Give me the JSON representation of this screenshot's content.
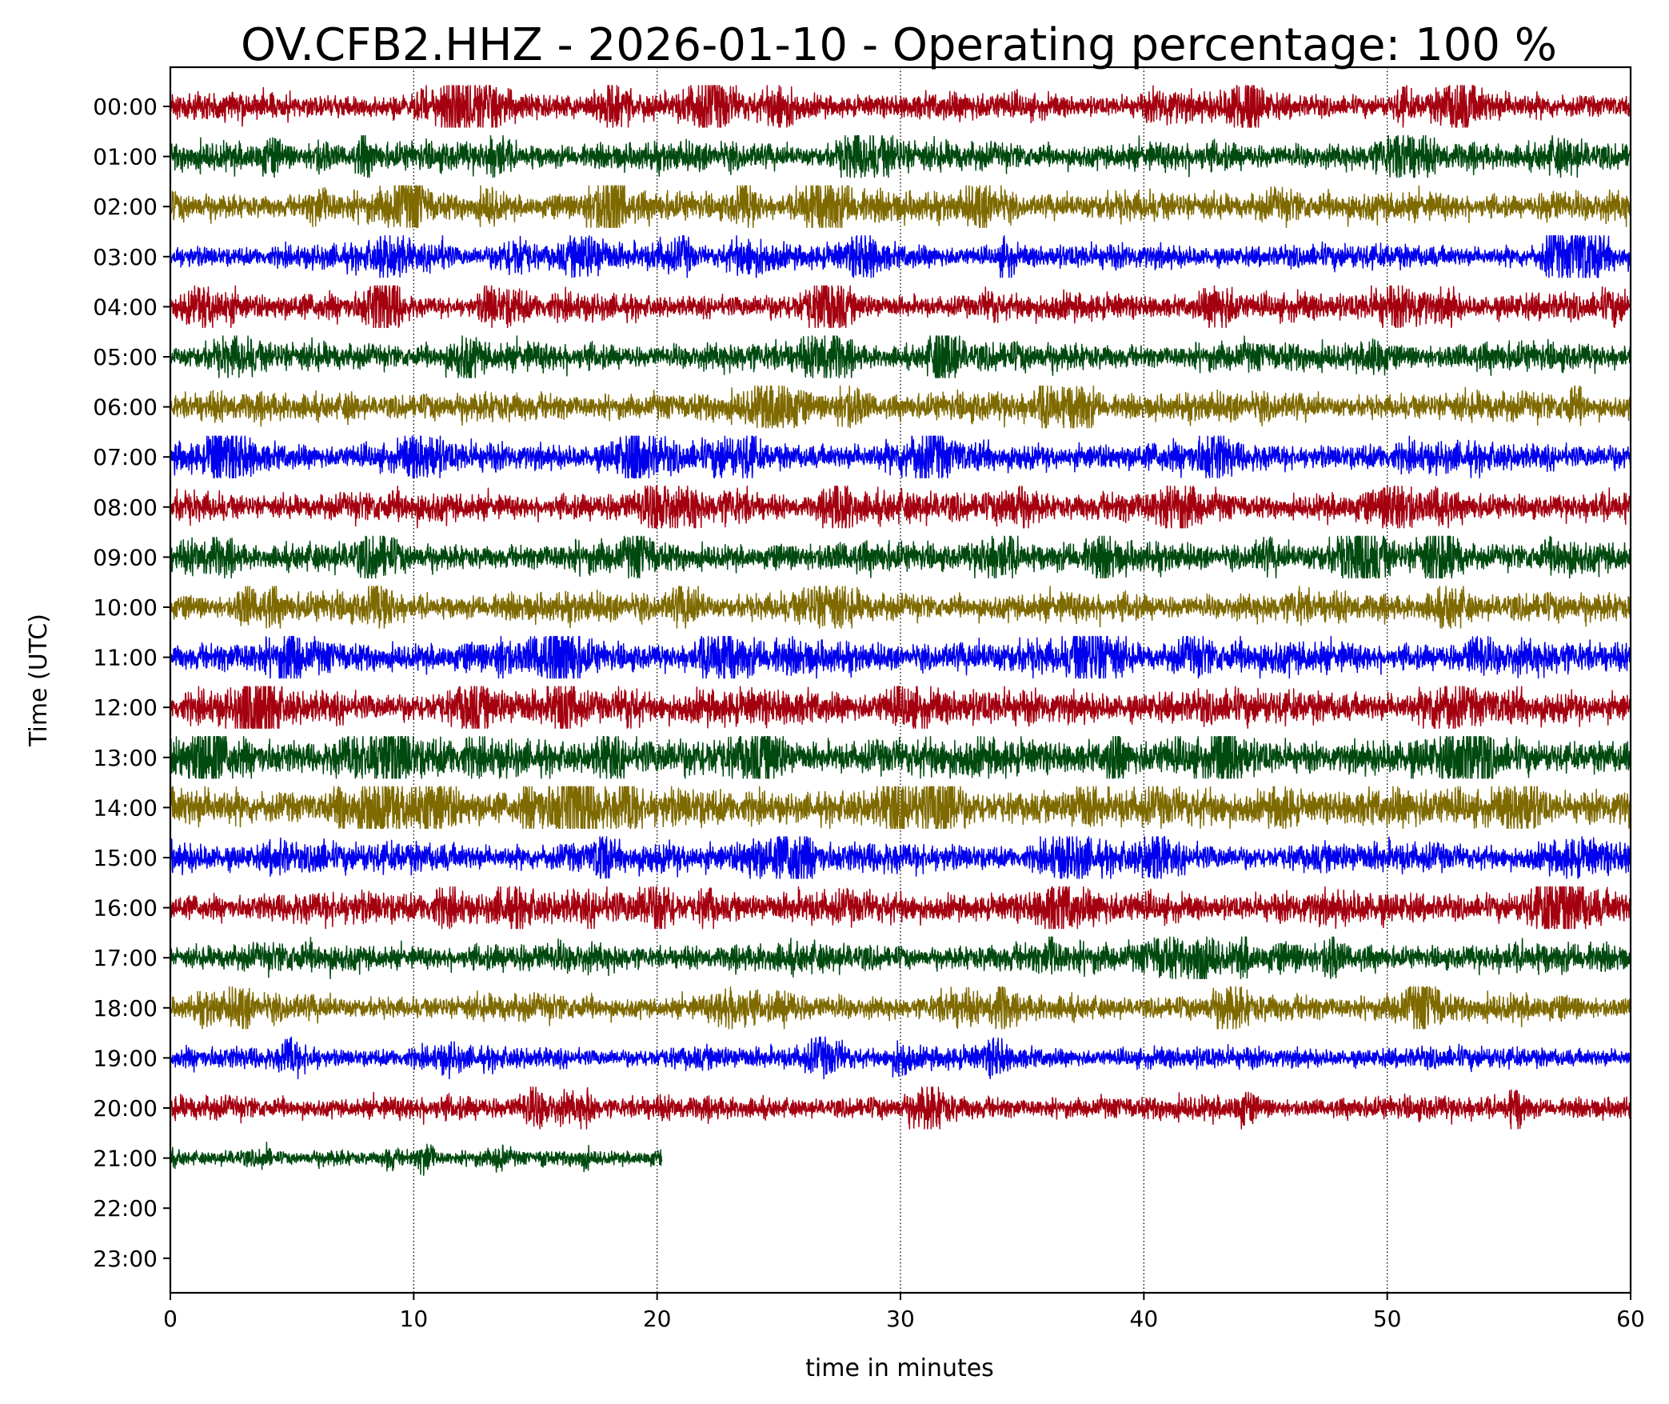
{
  "chart_data": {
    "type": "line",
    "title": "OV.CFB2.HHZ - 2026-01-10 - Operating percentage: 100 %",
    "xlabel": "time in minutes",
    "ylabel": "Time (UTC)",
    "xlim": [
      0,
      60
    ],
    "x_ticks": [
      "0",
      "10",
      "20",
      "30",
      "40",
      "50",
      "60"
    ],
    "x_tick_values": [
      0,
      10,
      20,
      30,
      40,
      50,
      60
    ],
    "y_ticks": [
      "00:00",
      "01:00",
      "02:00",
      "03:00",
      "04:00",
      "05:00",
      "06:00",
      "07:00",
      "08:00",
      "09:00",
      "10:00",
      "11:00",
      "12:00",
      "13:00",
      "14:00",
      "15:00",
      "16:00",
      "17:00",
      "18:00",
      "19:00",
      "20:00",
      "21:00",
      "22:00",
      "23:00"
    ],
    "grid": "vertical dotted lines at each x tick",
    "trace_colors": [
      "#a50010",
      "#004a10",
      "#7f6a00",
      "#0000ee"
    ],
    "traces": [
      {
        "hour": "00:00",
        "start_min": 0,
        "end_min": 60,
        "amp": 1.0
      },
      {
        "hour": "01:00",
        "start_min": 0,
        "end_min": 60,
        "amp": 1.05
      },
      {
        "hour": "02:00",
        "start_min": 0,
        "end_min": 60,
        "amp": 1.05
      },
      {
        "hour": "03:00",
        "start_min": 0,
        "end_min": 60,
        "amp": 0.9
      },
      {
        "hour": "04:00",
        "start_min": 0,
        "end_min": 60,
        "amp": 0.95
      },
      {
        "hour": "05:00",
        "start_min": 0,
        "end_min": 60,
        "amp": 1.05
      },
      {
        "hour": "06:00",
        "start_min": 0,
        "end_min": 60,
        "amp": 1.05
      },
      {
        "hour": "07:00",
        "start_min": 0,
        "end_min": 60,
        "amp": 1.1
      },
      {
        "hour": "08:00",
        "start_min": 0,
        "end_min": 60,
        "amp": 1.1
      },
      {
        "hour": "09:00",
        "start_min": 0,
        "end_min": 60,
        "amp": 1.1
      },
      {
        "hour": "10:00",
        "start_min": 0,
        "end_min": 60,
        "amp": 1.05
      },
      {
        "hour": "11:00",
        "start_min": 0,
        "end_min": 60,
        "amp": 1.2
      },
      {
        "hour": "12:00",
        "start_min": 0,
        "end_min": 60,
        "amp": 1.3
      },
      {
        "hour": "13:00",
        "start_min": 0,
        "end_min": 60,
        "amp": 1.45
      },
      {
        "hour": "14:00",
        "start_min": 0,
        "end_min": 60,
        "amp": 1.4
      },
      {
        "hour": "15:00",
        "start_min": 0,
        "end_min": 60,
        "amp": 1.1
      },
      {
        "hour": "16:00",
        "start_min": 0,
        "end_min": 60,
        "amp": 1.2
      },
      {
        "hour": "17:00",
        "start_min": 0,
        "end_min": 60,
        "amp": 1.05
      },
      {
        "hour": "18:00",
        "start_min": 0,
        "end_min": 60,
        "amp": 0.95
      },
      {
        "hour": "19:00",
        "start_min": 0,
        "end_min": 60,
        "amp": 0.8
      },
      {
        "hour": "20:00",
        "start_min": 0,
        "end_min": 60,
        "amp": 0.85
      },
      {
        "hour": "21:00",
        "start_min": 0,
        "end_min": 20.2,
        "amp": 0.6
      }
    ]
  }
}
